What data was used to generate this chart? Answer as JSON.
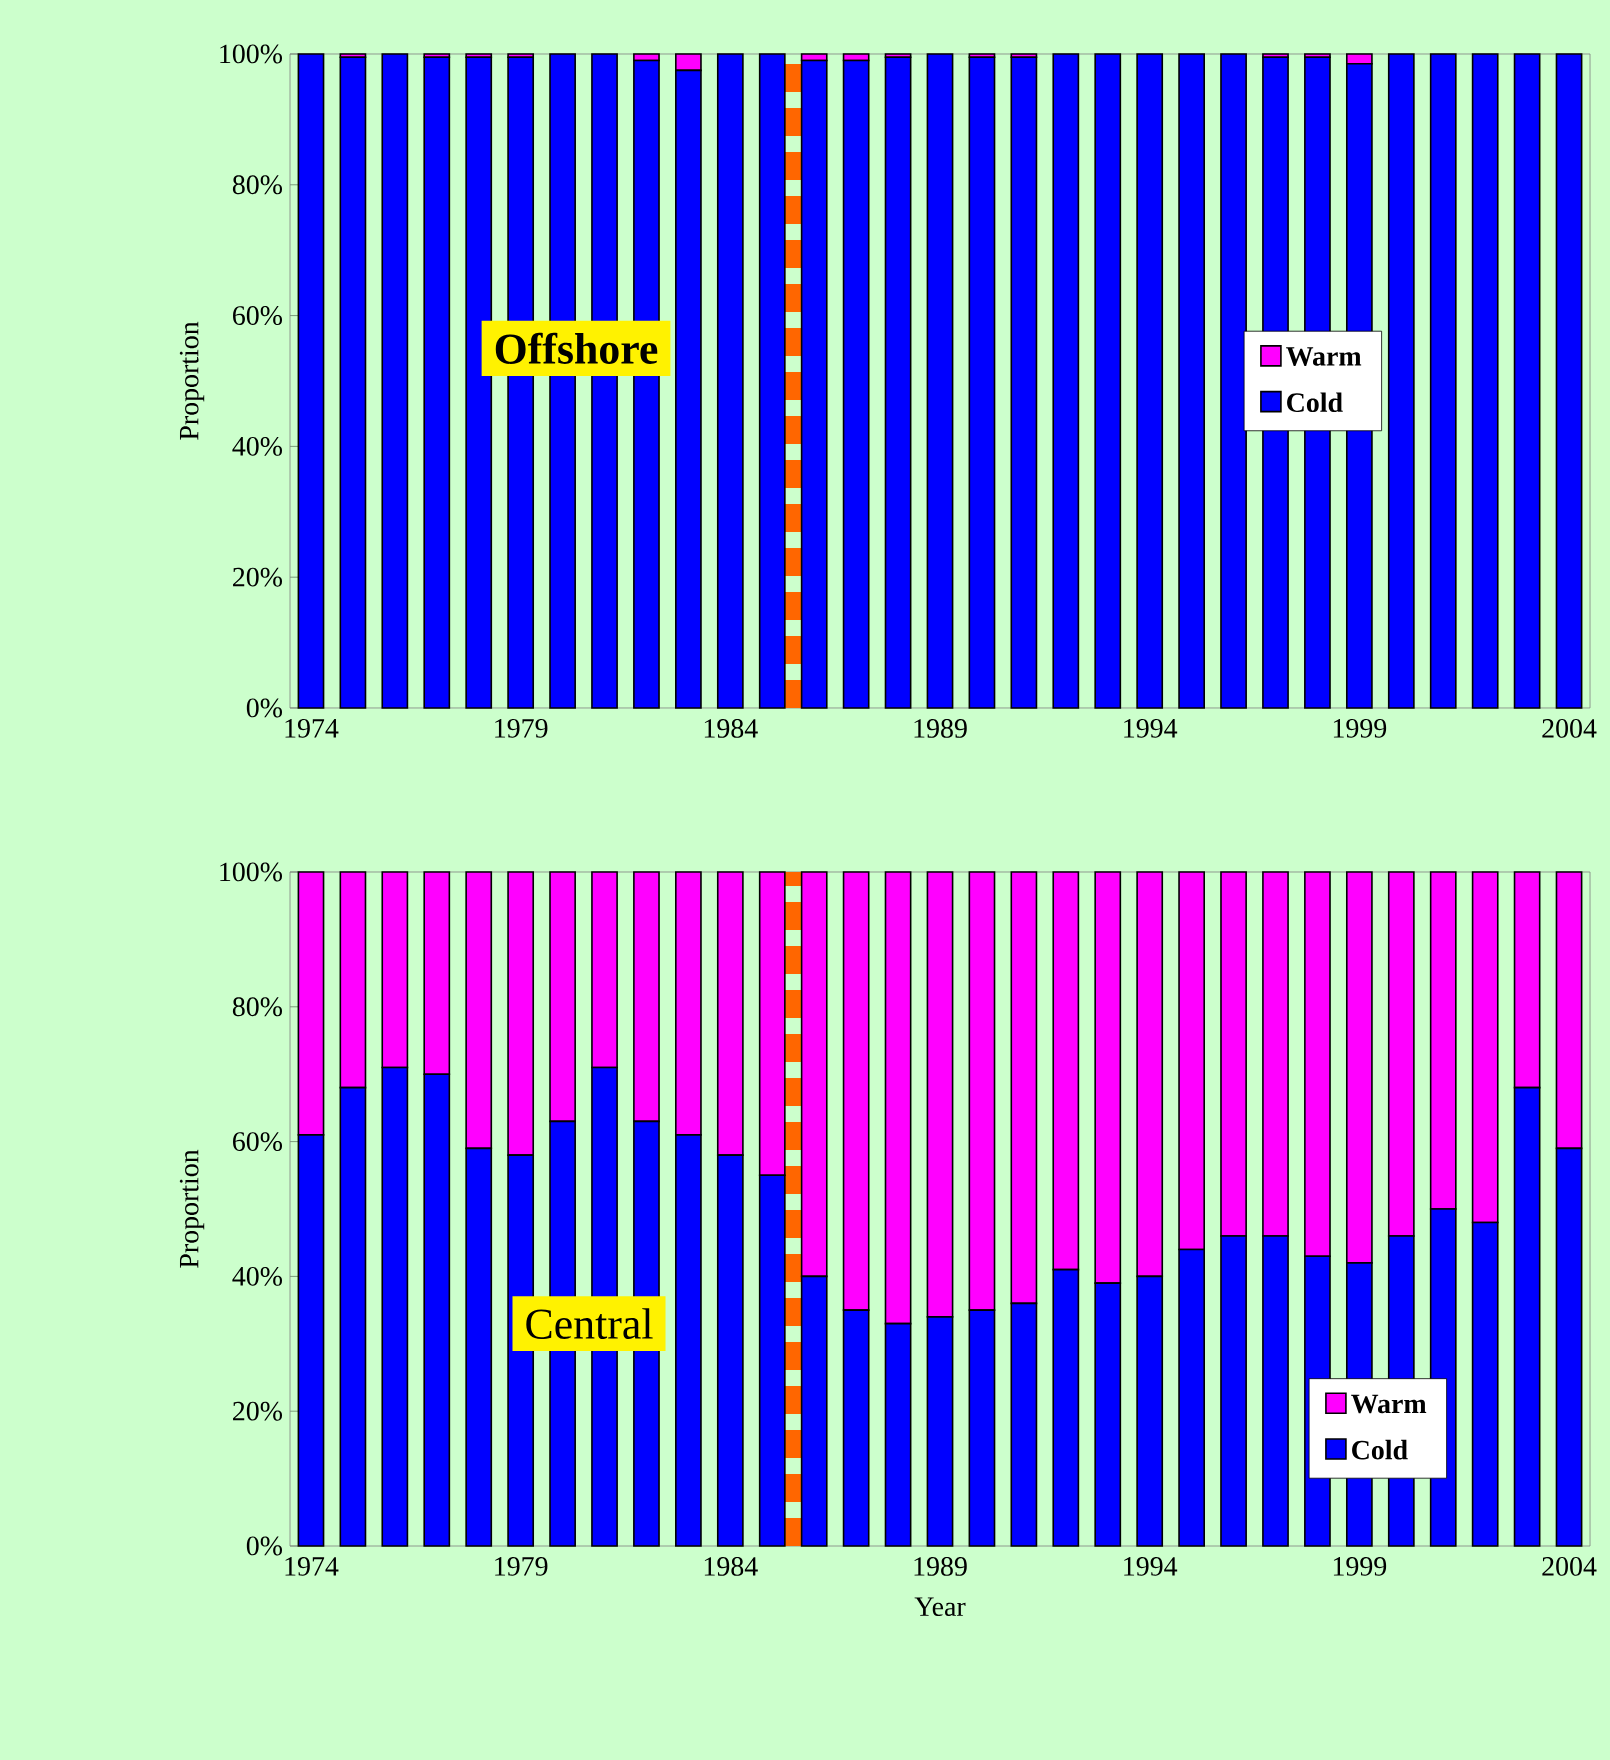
{
  "chart_data": [
    {
      "type": "bar",
      "stacked": true,
      "ylabel": "Proportion",
      "annotations": [
        "Offshore"
      ],
      "legend": "right",
      "x": [
        1974,
        1975,
        1976,
        1977,
        1978,
        1979,
        1980,
        1981,
        1982,
        1983,
        1984,
        1985,
        1986,
        1987,
        1988,
        1989,
        1990,
        1991,
        1992,
        1993,
        1994,
        1995,
        1996,
        1997,
        1998,
        1999,
        2000,
        2001,
        2002,
        2003,
        2004
      ],
      "xlim": [
        1973.5,
        2004.5
      ],
      "xticks": [
        1974,
        1979,
        1984,
        1989,
        1994,
        1999,
        2004
      ],
      "ylim": [
        0,
        100
      ],
      "yticks": [
        {
          "value": 0,
          "label": "0%"
        },
        {
          "value": 20,
          "label": "20%"
        },
        {
          "value": 40,
          "label": "40%"
        },
        {
          "value": 60,
          "label": "60%"
        },
        {
          "value": 80,
          "label": "80%"
        },
        {
          "value": 100,
          "label": "100%"
        }
      ],
      "ref_lines": [
        {
          "axis": "x",
          "value": 1985.5,
          "color": "#ff6600",
          "line_style": "dashed"
        }
      ],
      "series": [
        {
          "name": "Cold",
          "color": "#0000ff",
          "values": [
            100,
            99.5,
            100,
            99.5,
            99.5,
            99.5,
            100,
            100,
            99,
            97.5,
            100,
            100,
            99,
            99,
            99.5,
            100,
            99.5,
            99.5,
            100,
            100,
            100,
            100,
            100,
            99.5,
            99.5,
            98.5,
            100,
            100,
            100,
            100,
            100
          ]
        },
        {
          "name": "Warm",
          "color": "#ff00ff",
          "values": [
            0,
            0.5,
            0,
            0.5,
            0.5,
            0.5,
            0,
            0,
            1,
            2.5,
            0,
            0,
            1,
            1,
            0.5,
            0,
            0.5,
            0.5,
            0,
            0,
            0,
            0,
            0,
            0.5,
            0.5,
            1.5,
            0,
            0,
            0,
            0,
            0
          ]
        }
      ]
    },
    {
      "type": "bar",
      "stacked": true,
      "ylabel": "Proportion",
      "xlabel": "Year",
      "annotations": [
        "Central"
      ],
      "legend": "bottom right",
      "x": [
        1974,
        1975,
        1976,
        1977,
        1978,
        1979,
        1980,
        1981,
        1982,
        1983,
        1984,
        1985,
        1986,
        1987,
        1988,
        1989,
        1990,
        1991,
        1992,
        1993,
        1994,
        1995,
        1996,
        1997,
        1998,
        1999,
        2000,
        2001,
        2002,
        2003,
        2004
      ],
      "xlim": [
        1973.5,
        2004.5
      ],
      "xticks": [
        1974,
        1979,
        1984,
        1989,
        1994,
        1999,
        2004
      ],
      "ylim": [
        0,
        100
      ],
      "yticks": [
        {
          "value": 0,
          "label": "0%"
        },
        {
          "value": 20,
          "label": "20%"
        },
        {
          "value": 40,
          "label": "40%"
        },
        {
          "value": 60,
          "label": "60%"
        },
        {
          "value": 80,
          "label": "80%"
        },
        {
          "value": 100,
          "label": "100%"
        }
      ],
      "ref_lines": [
        {
          "axis": "x",
          "value": 1985.5,
          "color": "#ff6600",
          "line_style": "dashed"
        }
      ],
      "series": [
        {
          "name": "Cold",
          "color": "#0000ff",
          "values": [
            61,
            68,
            71,
            70,
            59,
            58,
            63,
            71,
            63,
            61,
            58,
            55,
            40,
            35,
            33,
            34,
            35,
            36,
            41,
            39,
            40,
            44,
            46,
            46,
            43,
            42,
            46,
            50,
            48,
            68,
            59
          ]
        },
        {
          "name": "Warm",
          "color": "#ff00ff",
          "values": [
            39,
            32,
            29,
            30,
            41,
            42,
            37,
            29,
            37,
            39,
            42,
            45,
            60,
            65,
            67,
            66,
            65,
            64,
            59,
            61,
            60,
            56,
            54,
            54,
            57,
            58,
            54,
            50,
            52,
            32,
            41
          ]
        }
      ]
    }
  ]
}
